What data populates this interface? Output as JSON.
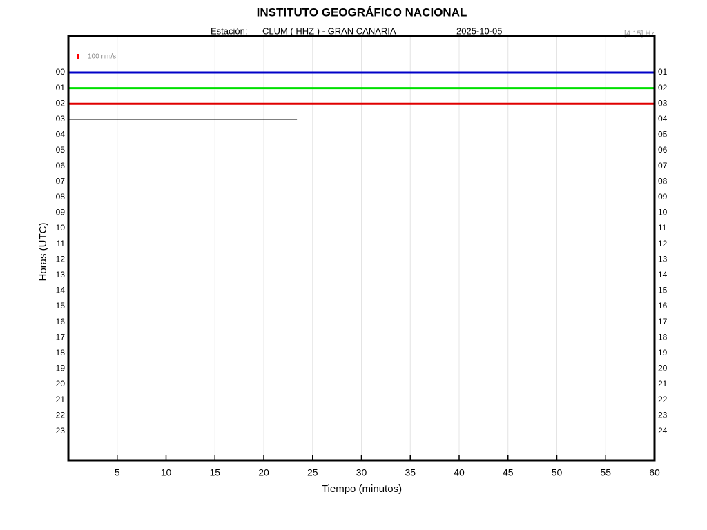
{
  "chart_data": {
    "type": "helicorder",
    "title": "INSTITUTO GEOGRÁFICO NACIONAL",
    "station_label": "Estación:",
    "station": "CLUM ( HHZ ) - GRAN CANARIA",
    "date": "2025-10-05",
    "filter": "[4 15] Hz",
    "scale_label": "100 nm/s",
    "scale_color": "#ff0000",
    "x_label": "Tiempo (minutos)",
    "y_label": "Horas (UTC)",
    "xlim": [
      0,
      60
    ],
    "xticks": [
      5,
      10,
      15,
      20,
      25,
      30,
      35,
      40,
      45,
      50,
      55,
      60
    ],
    "grid": true,
    "left_labels": [
      "00",
      "01",
      "02",
      "03",
      "04",
      "05",
      "06",
      "07",
      "08",
      "09",
      "10",
      "11",
      "12",
      "13",
      "14",
      "15",
      "16",
      "17",
      "18",
      "19",
      "20",
      "21",
      "22",
      "23"
    ],
    "right_labels": [
      "01",
      "02",
      "03",
      "04",
      "05",
      "06",
      "07",
      "08",
      "09",
      "10",
      "11",
      "12",
      "13",
      "14",
      "15",
      "16",
      "17",
      "18",
      "19",
      "20",
      "21",
      "22",
      "23",
      "24"
    ],
    "traces": [
      {
        "color": "#0000c8",
        "x": [
          0,
          60
        ]
      },
      {
        "color": "#00e000",
        "x": [
          0,
          60
        ]
      },
      {
        "color": "#e00000",
        "x": [
          0,
          60
        ]
      },
      {
        "color": "#000000",
        "x": [
          0,
          23.4
        ]
      }
    ]
  }
}
